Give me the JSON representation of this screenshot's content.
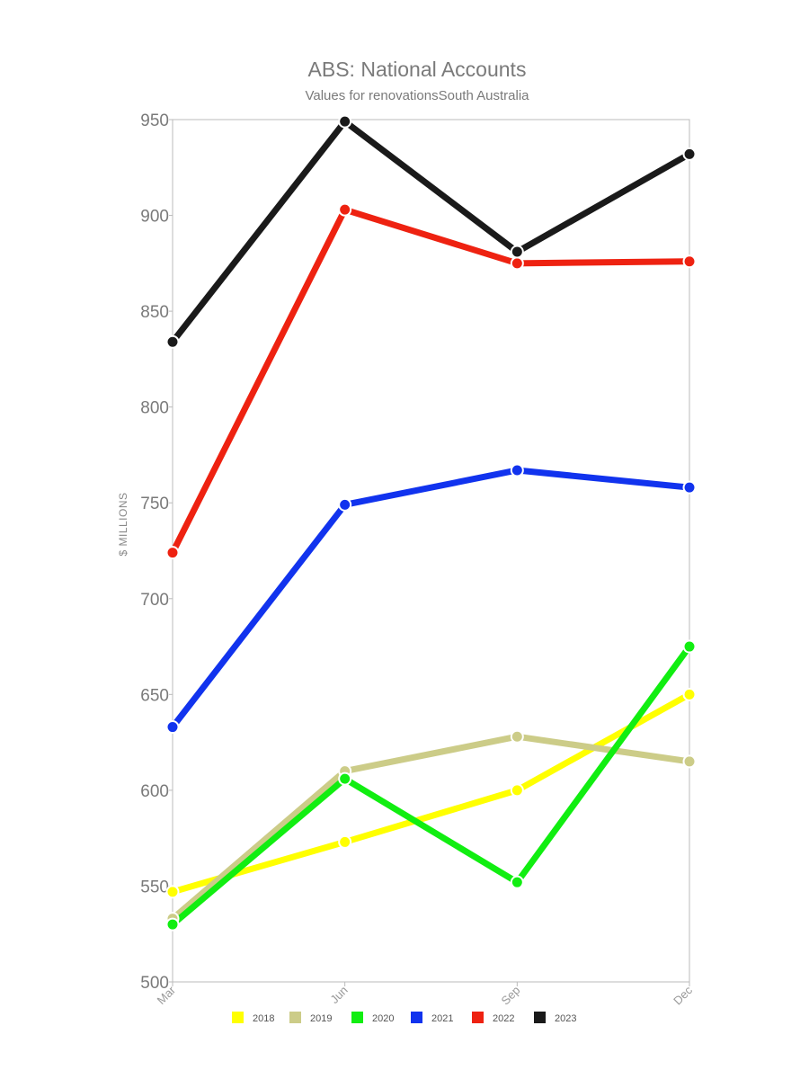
{
  "chart_data": {
    "type": "line",
    "title": "ABS: National Accounts",
    "subtitle": "Values for renovationsSouth Australia",
    "xlabel": "",
    "ylabel": "$ MILLIONS",
    "categories": [
      "Mar",
      "Jun",
      "Sep",
      "Dec"
    ],
    "ylim": [
      500,
      950
    ],
    "yticks": [
      500,
      550,
      600,
      650,
      700,
      750,
      800,
      850,
      900,
      950
    ],
    "legend_position": "bottom",
    "grid": false,
    "series": [
      {
        "name": "2018",
        "color": "#ffff00",
        "values": [
          547,
          573,
          600,
          650
        ]
      },
      {
        "name": "2019",
        "color": "#cccc88",
        "values": [
          533,
          610,
          628,
          615
        ]
      },
      {
        "name": "2020",
        "color": "#11ee11",
        "values": [
          530,
          606,
          552,
          675
        ]
      },
      {
        "name": "2021",
        "color": "#1133ee",
        "values": [
          633,
          749,
          767,
          758
        ]
      },
      {
        "name": "2022",
        "color": "#ee2211",
        "values": [
          724,
          903,
          875,
          876
        ]
      },
      {
        "name": "2023",
        "color": "#1a1a1a",
        "values": [
          834,
          949,
          881,
          932
        ]
      }
    ]
  }
}
